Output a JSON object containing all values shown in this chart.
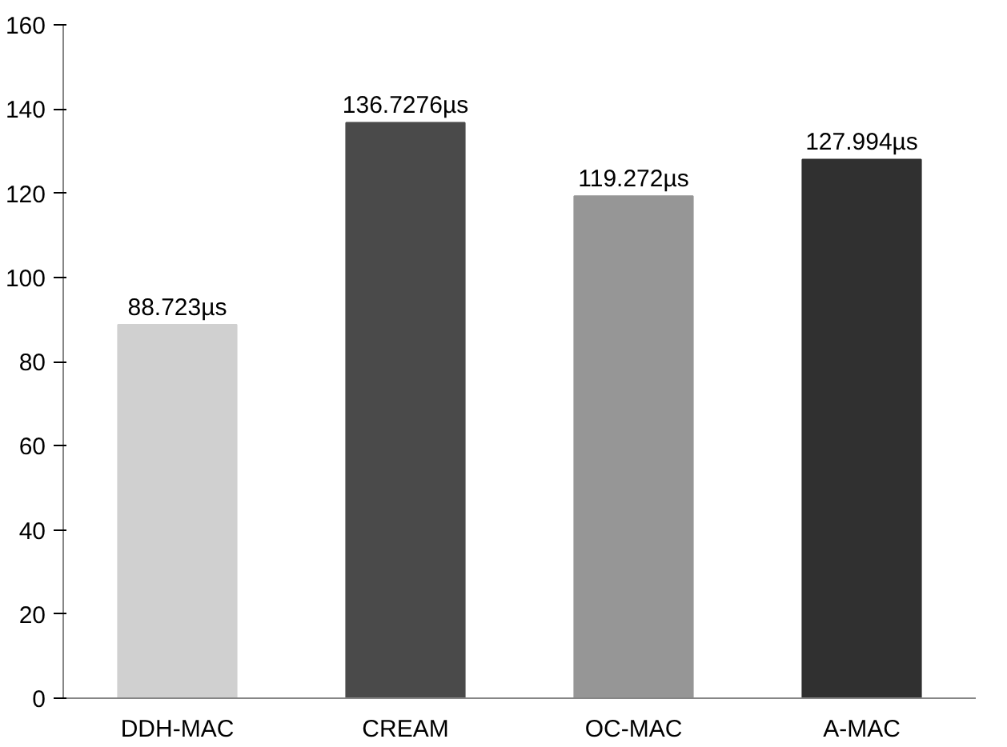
{
  "chart_data": {
    "type": "bar",
    "categories": [
      "DDH-MAC",
      "CREAM",
      "OC-MAC",
      "A-MAC"
    ],
    "values": [
      88.723,
      136.7276,
      119.272,
      127.994
    ],
    "colors": [
      "#d0d0d0",
      "#4a4a4a",
      "#969696",
      "#303030"
    ],
    "value_labels": [
      "88.723µs",
      "136.7276µs",
      "119.272µs",
      "127.994µs"
    ],
    "ylim": [
      0,
      160
    ],
    "yticks": [
      0,
      20,
      40,
      60,
      80,
      100,
      120,
      140,
      160
    ],
    "grid": false
  }
}
